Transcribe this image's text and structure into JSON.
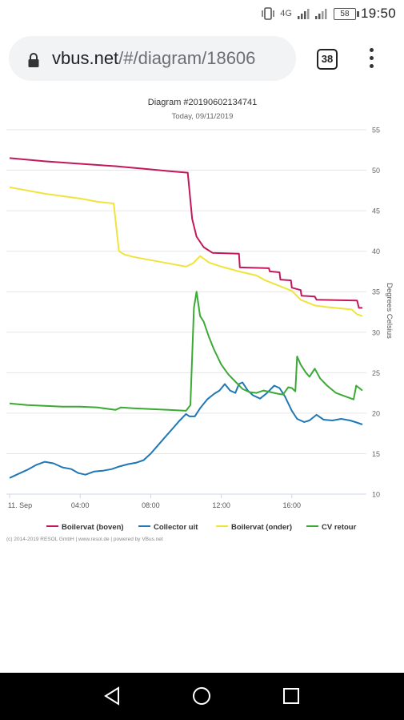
{
  "status_bar": {
    "network": "4G",
    "battery": "58",
    "time": "19:50"
  },
  "browser": {
    "url_host": "vbus.net",
    "url_path": "/#/diagram/18606",
    "tab_count": "38"
  },
  "chart": {
    "title": "Diagram #20190602134741",
    "subtitle": "Today, 09/11/2019",
    "ylabel": "Degrees Celsius",
    "copyright": "(c) 2014-2019 RESOL GmbH | www.resol.de | powered by VBus.net"
  },
  "chart_data": {
    "type": "line",
    "title": "Diagram #20190602134741",
    "subtitle": "Today, 09/11/2019",
    "xlabel": "",
    "ylabel": "Degrees Celsius",
    "x_unit": "hours since 11. Sep 00:00",
    "x_ticks": [
      {
        "x": 0,
        "label": "11. Sep"
      },
      {
        "x": 4,
        "label": "04:00"
      },
      {
        "x": 8,
        "label": "08:00"
      },
      {
        "x": 12,
        "label": "12:00"
      },
      {
        "x": 16,
        "label": "16:00"
      }
    ],
    "xlim": [
      0,
      20
    ],
    "ylim": [
      10,
      55
    ],
    "y_ticks": [
      10,
      15,
      20,
      25,
      30,
      35,
      40,
      45,
      50,
      55
    ],
    "grid": "horizontal",
    "legend_position": "bottom",
    "series": [
      {
        "name": "Boilervat (boven)",
        "color": "#c2185b",
        "points": [
          [
            0,
            51.5
          ],
          [
            2,
            51.1
          ],
          [
            4,
            50.8
          ],
          [
            6,
            50.5
          ],
          [
            7,
            50.3
          ],
          [
            8,
            50.1
          ],
          [
            9,
            49.9
          ],
          [
            10.1,
            49.7
          ],
          [
            10.35,
            44
          ],
          [
            10.6,
            41.8
          ],
          [
            11,
            40.5
          ],
          [
            11.5,
            39.8
          ],
          [
            13,
            39.7
          ],
          [
            13.05,
            38
          ],
          [
            14.7,
            37.9
          ],
          [
            14.75,
            37.5
          ],
          [
            15.3,
            37.4
          ],
          [
            15.35,
            36.5
          ],
          [
            15.95,
            36.4
          ],
          [
            16,
            35.5
          ],
          [
            16.5,
            35.2
          ],
          [
            16.55,
            34.5
          ],
          [
            17.3,
            34.4
          ],
          [
            17.4,
            34
          ],
          [
            19.7,
            33.9
          ],
          [
            19.8,
            33
          ],
          [
            20,
            33
          ]
        ]
      },
      {
        "name": "Collector uit",
        "color": "#1f77b4",
        "points": [
          [
            0,
            12
          ],
          [
            0.5,
            12.5
          ],
          [
            1,
            13
          ],
          [
            1.5,
            13.6
          ],
          [
            2,
            14
          ],
          [
            2.5,
            13.8
          ],
          [
            3,
            13.3
          ],
          [
            3.5,
            13.1
          ],
          [
            3.9,
            12.6
          ],
          [
            4.3,
            12.4
          ],
          [
            4.8,
            12.8
          ],
          [
            5.3,
            12.9
          ],
          [
            5.8,
            13.1
          ],
          [
            6.2,
            13.4
          ],
          [
            6.7,
            13.7
          ],
          [
            7.2,
            13.9
          ],
          [
            7.6,
            14.2
          ],
          [
            8,
            15
          ],
          [
            8.4,
            16
          ],
          [
            8.8,
            17
          ],
          [
            9.2,
            18
          ],
          [
            9.6,
            19
          ],
          [
            10,
            19.9
          ],
          [
            10.2,
            19.6
          ],
          [
            10.5,
            19.6
          ],
          [
            10.8,
            20.6
          ],
          [
            11.2,
            21.7
          ],
          [
            11.6,
            22.4
          ],
          [
            11.9,
            22.8
          ],
          [
            12.2,
            23.6
          ],
          [
            12.5,
            22.8
          ],
          [
            12.8,
            22.5
          ],
          [
            13,
            23.6
          ],
          [
            13.2,
            23.8
          ],
          [
            13.5,
            22.8
          ],
          [
            13.8,
            22.2
          ],
          [
            14.2,
            21.8
          ],
          [
            14.6,
            22.5
          ],
          [
            15,
            23.4
          ],
          [
            15.3,
            23.1
          ],
          [
            15.6,
            22.1
          ],
          [
            16,
            20.3
          ],
          [
            16.3,
            19.3
          ],
          [
            16.7,
            18.9
          ],
          [
            17,
            19.1
          ],
          [
            17.4,
            19.8
          ],
          [
            17.8,
            19.2
          ],
          [
            18.3,
            19.1
          ],
          [
            18.8,
            19.3
          ],
          [
            19.3,
            19.1
          ],
          [
            19.6,
            18.9
          ],
          [
            20,
            18.6
          ]
        ]
      },
      {
        "name": "Boilervat (onder)",
        "color": "#f0e33b",
        "points": [
          [
            0,
            47.9
          ],
          [
            1,
            47.5
          ],
          [
            2,
            47.1
          ],
          [
            3,
            46.8
          ],
          [
            4,
            46.5
          ],
          [
            5,
            46.1
          ],
          [
            5.9,
            45.9
          ],
          [
            6.2,
            40
          ],
          [
            6.5,
            39.6
          ],
          [
            7,
            39.3
          ],
          [
            8,
            38.9
          ],
          [
            9,
            38.5
          ],
          [
            10,
            38.1
          ],
          [
            10.4,
            38.5
          ],
          [
            10.8,
            39.4
          ],
          [
            11.3,
            38.6
          ],
          [
            12,
            38.1
          ],
          [
            13,
            37.5
          ],
          [
            14,
            37
          ],
          [
            14.5,
            36.4
          ],
          [
            15.3,
            35.7
          ],
          [
            16,
            35.1
          ],
          [
            16.5,
            34
          ],
          [
            17.3,
            33.3
          ],
          [
            18,
            33.1
          ],
          [
            19.4,
            32.8
          ],
          [
            19.7,
            32.2
          ],
          [
            20,
            32
          ]
        ]
      },
      {
        "name": "CV retour",
        "color": "#3aaa35",
        "points": [
          [
            0,
            21.2
          ],
          [
            1,
            21
          ],
          [
            2,
            20.9
          ],
          [
            3,
            20.8
          ],
          [
            4,
            20.8
          ],
          [
            5,
            20.7
          ],
          [
            6,
            20.4
          ],
          [
            6.3,
            20.7
          ],
          [
            7,
            20.6
          ],
          [
            8,
            20.5
          ],
          [
            9,
            20.4
          ],
          [
            10,
            20.3
          ],
          [
            10.25,
            21
          ],
          [
            10.45,
            33
          ],
          [
            10.6,
            35
          ],
          [
            10.8,
            32
          ],
          [
            11,
            31.3
          ],
          [
            11.3,
            29.4
          ],
          [
            11.6,
            27.8
          ],
          [
            12,
            26
          ],
          [
            12.4,
            24.8
          ],
          [
            12.8,
            23.9
          ],
          [
            13.2,
            23
          ],
          [
            13.6,
            22.6
          ],
          [
            14,
            22.5
          ],
          [
            14.4,
            22.8
          ],
          [
            14.8,
            22.6
          ],
          [
            15.2,
            22.4
          ],
          [
            15.5,
            22.3
          ],
          [
            15.8,
            23.2
          ],
          [
            16,
            23.1
          ],
          [
            16.2,
            22.7
          ],
          [
            16.3,
            27
          ],
          [
            16.5,
            26
          ],
          [
            16.8,
            25
          ],
          [
            17,
            24.5
          ],
          [
            17.3,
            25.5
          ],
          [
            17.6,
            24.3
          ],
          [
            18,
            23.4
          ],
          [
            18.5,
            22.5
          ],
          [
            19,
            22.1
          ],
          [
            19.5,
            21.7
          ],
          [
            19.65,
            23.4
          ],
          [
            20,
            22.8
          ]
        ]
      }
    ]
  }
}
